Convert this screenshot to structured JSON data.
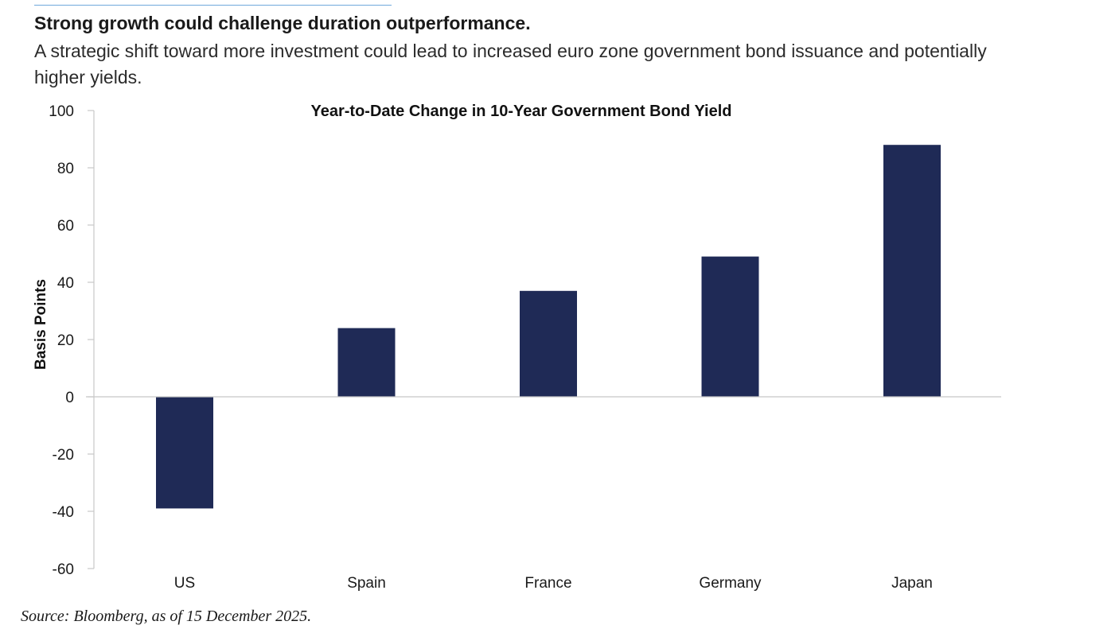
{
  "headline": "Strong growth could challenge duration outperformance.",
  "subheadline": "A strategic shift toward more investment could lead to increased euro zone government bond issuance and potentially higher yields.",
  "source": "Source: Bloomberg, as of 15 December 2025.",
  "colors": {
    "bar": "#1f2a56",
    "axis": "#c8c8c8",
    "accent_rule": "#6fa8dc"
  },
  "chart_data": {
    "type": "bar",
    "title": "Year-to-Date Change in 10-Year Government Bond Yield",
    "xlabel": "",
    "ylabel": "Basis Points",
    "categories": [
      "US",
      "Spain",
      "France",
      "Germany",
      "Japan"
    ],
    "values": [
      -39,
      24,
      37,
      49,
      88
    ],
    "ylim": [
      -60,
      100
    ],
    "yticks": [
      100,
      80,
      60,
      40,
      20,
      0,
      -20,
      -40,
      -60
    ],
    "ytick_labels": [
      "100",
      "80",
      "60",
      "40",
      "20",
      "0",
      "-20",
      "-40",
      "-60"
    ],
    "grid": false,
    "legend": "none"
  }
}
